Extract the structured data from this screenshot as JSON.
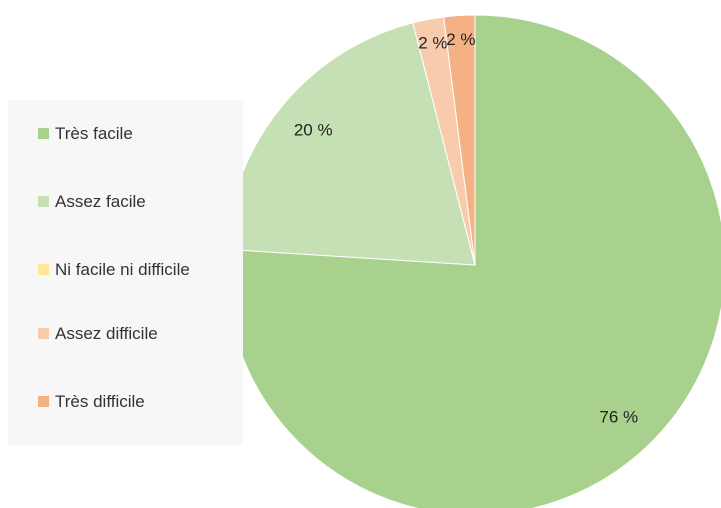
{
  "chart_data": {
    "type": "pie",
    "categories": [
      "Très facile",
      "Assez facile",
      "Ni facile ni difficile",
      "Assez difficile",
      "Très difficile"
    ],
    "values": [
      76,
      20,
      0,
      2,
      2
    ],
    "value_labels": [
      "76 %",
      "20 %",
      null,
      "2 %",
      "2 %"
    ],
    "colors": [
      "#a9d18e",
      "#c5e0b4",
      "#ffe699",
      "#f8cbad",
      "#f4b183"
    ],
    "legend": "left"
  }
}
